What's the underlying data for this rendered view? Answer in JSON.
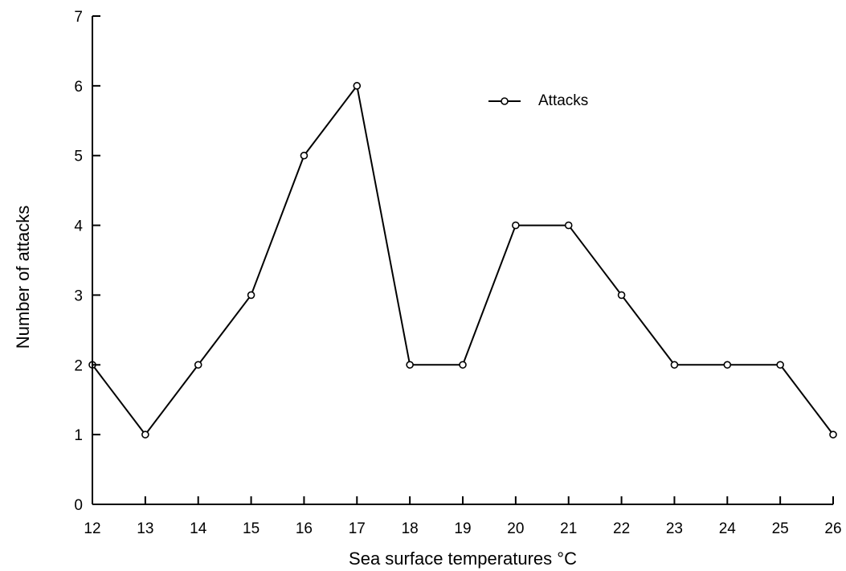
{
  "chart_data": {
    "type": "line",
    "title": "",
    "xlabel": "Sea surface temperatures °C",
    "ylabel": "Number of attacks",
    "x": [
      12,
      13,
      14,
      15,
      16,
      17,
      18,
      19,
      20,
      21,
      22,
      23,
      24,
      25,
      26
    ],
    "series": [
      {
        "name": "Attacks",
        "values": [
          2,
          1,
          2,
          3,
          5,
          6,
          2,
          2,
          4,
          4,
          3,
          2,
          2,
          2,
          1
        ],
        "color": "#000000",
        "marker": "open-circle"
      }
    ],
    "xlim": [
      12,
      26
    ],
    "ylim": [
      0,
      7
    ],
    "xticks": [
      "12",
      "13",
      "14",
      "15",
      "16",
      "17",
      "18",
      "19",
      "20",
      "21",
      "22",
      "23",
      "24",
      "25",
      "26"
    ],
    "yticks": [
      "0",
      "1",
      "2",
      "3",
      "4",
      "5",
      "6",
      "7"
    ],
    "grid": false,
    "legend_position": "top-right"
  }
}
